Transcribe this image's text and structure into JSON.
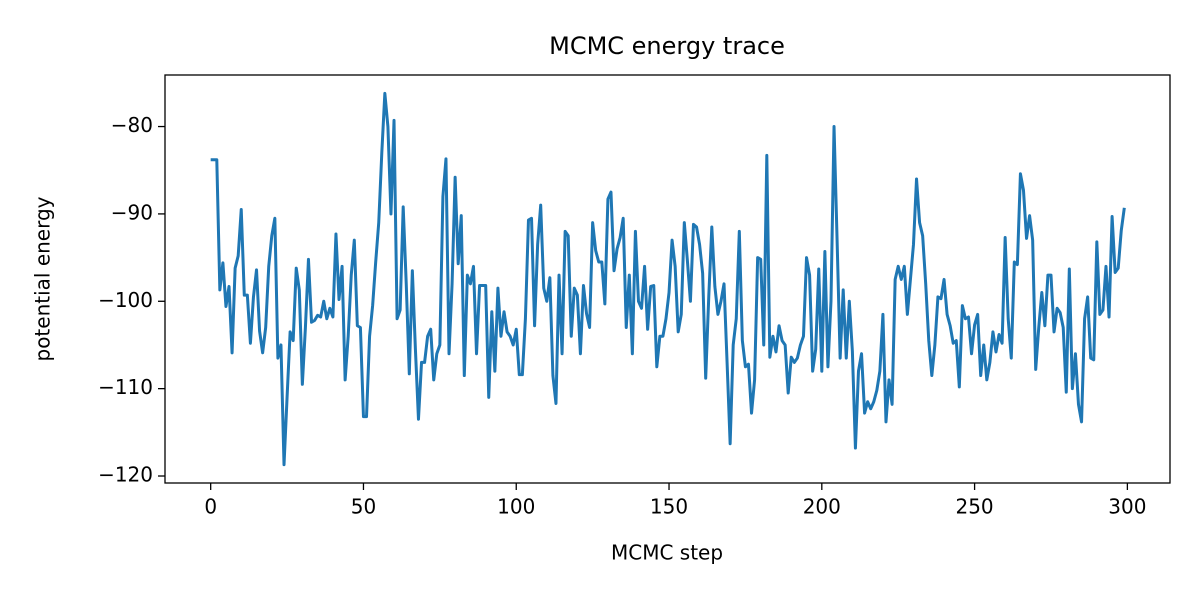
{
  "chart_data": {
    "type": "line",
    "title": "MCMC energy trace",
    "x_label": "MCMC step",
    "y_label": "potential energy",
    "color": "#1f77b4",
    "x": [
      0,
      1,
      2,
      3,
      4,
      5,
      6,
      7,
      8,
      9,
      10,
      11,
      12,
      13,
      14,
      15,
      16,
      17,
      18,
      19,
      20,
      21,
      22,
      23,
      24,
      25,
      26,
      27,
      28,
      29,
      30,
      31,
      32,
      33,
      34,
      35,
      36,
      37,
      38,
      39,
      40,
      41,
      42,
      43,
      44,
      45,
      46,
      47,
      48,
      49,
      50,
      51,
      52,
      53,
      54,
      55,
      56,
      57,
      58,
      59,
      60,
      61,
      62,
      63,
      64,
      65,
      66,
      67,
      68,
      69,
      70,
      71,
      72,
      73,
      74,
      75,
      76,
      77,
      78,
      79,
      80,
      81,
      82,
      83,
      84,
      85,
      86,
      87,
      88,
      89,
      90,
      91,
      92,
      93,
      94,
      95,
      96,
      97,
      98,
      99,
      100,
      101,
      102,
      103,
      104,
      105,
      106,
      107,
      108,
      109,
      110,
      111,
      112,
      113,
      114,
      115,
      116,
      117,
      118,
      119,
      120,
      121,
      122,
      123,
      124,
      125,
      126,
      127,
      128,
      129,
      130,
      131,
      132,
      133,
      134,
      135,
      136,
      137,
      138,
      139,
      140,
      141,
      142,
      143,
      144,
      145,
      146,
      147,
      148,
      149,
      150,
      151,
      152,
      153,
      154,
      155,
      156,
      157,
      158,
      159,
      160,
      161,
      162,
      163,
      164,
      165,
      166,
      167,
      168,
      169,
      170,
      171,
      172,
      173,
      174,
      175,
      176,
      177,
      178,
      179,
      180,
      181,
      182,
      183,
      184,
      185,
      186,
      187,
      188,
      189,
      190,
      191,
      192,
      193,
      194,
      195,
      196,
      197,
      198,
      199,
      200,
      201,
      202,
      203,
      204,
      205,
      206,
      207,
      208,
      209,
      210,
      211,
      212,
      213,
      214,
      215,
      216,
      217,
      218,
      219,
      220,
      221,
      222,
      223,
      224,
      225,
      226,
      227,
      228,
      229,
      230,
      231,
      232,
      233,
      234,
      235,
      236,
      237,
      238,
      239,
      240,
      241,
      242,
      243,
      244,
      245,
      246,
      247,
      248,
      249,
      250,
      251,
      252,
      253,
      254,
      255,
      256,
      257,
      258,
      259,
      260,
      261,
      262,
      263,
      264,
      265,
      266,
      267,
      268,
      269,
      270,
      271,
      272,
      273,
      274,
      275,
      276,
      277,
      278,
      279,
      280,
      281,
      282,
      283,
      284,
      285,
      286,
      287,
      288,
      289,
      290,
      291,
      292,
      293,
      294,
      295,
      296,
      297,
      298,
      299
    ],
    "values": [
      -83.8,
      -83.8,
      -83.8,
      -98.7,
      -95.6,
      -100.6,
      -98.3,
      -105.9,
      -96.2,
      -94.8,
      -89.5,
      -99.3,
      -99.3,
      -104.8,
      -99.5,
      -96.4,
      -103.4,
      -105.9,
      -103,
      -96,
      -92.5,
      -90.5,
      -106.5,
      -105,
      -118.7,
      -111,
      -103.5,
      -104.5,
      -96.2,
      -98.7,
      -109.5,
      -103,
      -95.2,
      -102.4,
      -102.2,
      -101.6,
      -101.8,
      -100,
      -102,
      -100.8,
      -101.8,
      -92.3,
      -99.8,
      -96,
      -109,
      -104,
      -97,
      -93,
      -102.8,
      -103,
      -113.2,
      -113.2,
      -104,
      -100.5,
      -95.5,
      -91,
      -83,
      -76.2,
      -80,
      -90,
      -79.3,
      -102,
      -101,
      -89.2,
      -98,
      -108.3,
      -96.5,
      -105.5,
      -113.5,
      -107,
      -107,
      -104,
      -103.2,
      -109,
      -106,
      -105,
      -88,
      -83.7,
      -106,
      -98,
      -85.8,
      -95.7,
      -90.2,
      -108.5,
      -97,
      -98,
      -96,
      -106,
      -98.2,
      -98.2,
      -98.2,
      -111,
      -101.2,
      -108,
      -98.5,
      -104,
      -101.2,
      -103.5,
      -104,
      -105,
      -103.2,
      -108.4,
      -108.4,
      -102,
      -90.7,
      -90.5,
      -102.8,
      -93.5,
      -89,
      -98.5,
      -100,
      -97.3,
      -108.5,
      -111.7,
      -97,
      -106,
      -92,
      -92.5,
      -104,
      -98.5,
      -99.3,
      -106,
      -98.2,
      -101.4,
      -103,
      -91,
      -94.2,
      -95.5,
      -95.5,
      -100.3,
      -88.3,
      -87.5,
      -96.5,
      -94,
      -92.7,
      -90.5,
      -103,
      -97,
      -106,
      -92,
      -100,
      -100.8,
      -96,
      -103.2,
      -98.3,
      -98.2,
      -107.5,
      -104,
      -104,
      -102,
      -99,
      -93,
      -96,
      -103.5,
      -101.5,
      -91,
      -95.3,
      -100,
      -91.2,
      -91.5,
      -93.5,
      -96.8,
      -108.8,
      -99.5,
      -91.5,
      -98.3,
      -101.5,
      -100,
      -98,
      -107,
      -116.3,
      -105,
      -102,
      -92,
      -104.5,
      -107.5,
      -107.2,
      -112.8,
      -109,
      -95,
      -95.2,
      -105,
      -83.3,
      -106.4,
      -104,
      -105.8,
      -102.8,
      -104.5,
      -105,
      -110.5,
      -106.4,
      -107,
      -106.5,
      -105,
      -104,
      -95,
      -97,
      -108,
      -105.5,
      -96.3,
      -108,
      -94.3,
      -107.5,
      -100,
      -80,
      -93,
      -106.5,
      -98.7,
      -106.5,
      -100,
      -105.7,
      -116.8,
      -108,
      -106,
      -112.8,
      -111.5,
      -112.3,
      -111.5,
      -110.2,
      -108,
      -101.5,
      -113.8,
      -109,
      -111.8,
      -97.5,
      -96,
      -97.5,
      -96,
      -101.5,
      -97.5,
      -93.5,
      -86,
      -91,
      -92.5,
      -98,
      -104.5,
      -108.5,
      -105,
      -99.5,
      -99.7,
      -97.5,
      -101.5,
      -102.8,
      -104.8,
      -104.5,
      -109.8,
      -100.5,
      -102,
      -101.8,
      -106,
      -102.7,
      -101.5,
      -108.5,
      -105,
      -109,
      -107,
      -103.5,
      -105.8,
      -103.8,
      -104.8,
      -92.7,
      -102,
      -106.5,
      -95.5,
      -95.8,
      -85.4,
      -87.3,
      -92.8,
      -90.2,
      -93,
      -107.8,
      -103,
      -99,
      -102.8,
      -97,
      -97,
      -103.5,
      -100.8,
      -101.3,
      -103,
      -110.4,
      -96.3,
      -110,
      -106,
      -111.8,
      -113.8,
      -102,
      -99.5,
      -106.5,
      -106.7,
      -93.2,
      -101.5,
      -101,
      -96,
      -101.8,
      -90.3,
      -96.7,
      -96.2,
      -91.9,
      -89.3
    ],
    "xlim": [
      -14.95,
      313.95
    ],
    "xticks": [
      0,
      50,
      100,
      150,
      200,
      250,
      300
    ],
    "ylim": [
      -120.8,
      -74.1
    ],
    "yticks": [
      {
        "value": -120,
        "label": "−120"
      },
      {
        "value": -110,
        "label": "−110"
      },
      {
        "value": -100,
        "label": "−100"
      },
      {
        "value": -90,
        "label": "−90"
      },
      {
        "value": -80,
        "label": "−80"
      }
    ]
  }
}
